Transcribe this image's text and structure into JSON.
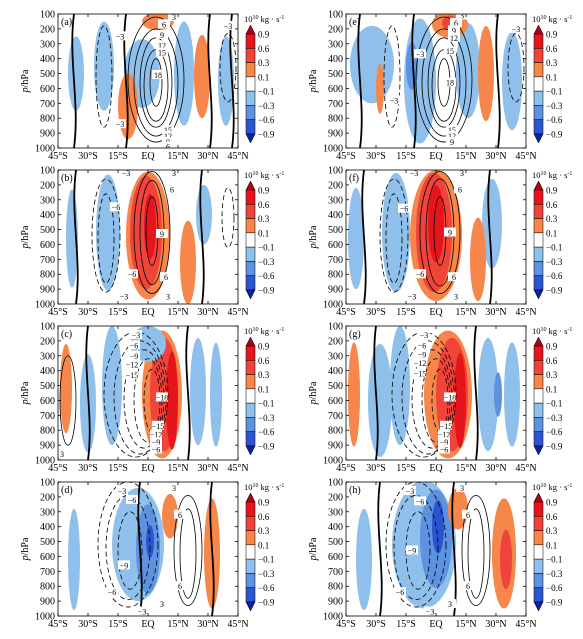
{
  "figure": {
    "x_tick_labels": [
      "45°S",
      "30°S",
      "15°S",
      "EQ",
      "15°N",
      "30°N",
      "45°N"
    ],
    "y_tick_labels": [
      "100",
      "200",
      "300",
      "400",
      "500",
      "600",
      "700",
      "800",
      "900",
      "1000"
    ],
    "y_label_prefix": "p",
    "y_label_suffix": "/hPa",
    "colorbar_unit_base": "10",
    "colorbar_unit_exp": "10",
    "colorbar_unit_rest": "kg · s",
    "colorbar_unit_rest_exp": "-1",
    "colorbar_ticks": [
      "0.9",
      "0.6",
      "0.3",
      "0.1",
      "−0.1",
      "−0.3",
      "−0.6",
      "−0.9"
    ],
    "colors": {
      "pos3": "#e6151c",
      "pos2": "#f0443a",
      "pos1": "#f6864a",
      "neg1": "#8fc0ec",
      "neg2": "#5c92e0",
      "neg3": "#2a55cf",
      "tri_top": "#b00018",
      "tri_bottom": "#0c20a8"
    }
  },
  "chart_data": [
    {
      "type": "heatmap",
      "panel_label": "(a)",
      "contour_labels": [
        "3",
        "6",
        "9",
        "12",
        "15",
        "18",
        "15",
        "12",
        "9",
        "6",
        "−3",
        "−3",
        "−3"
      ],
      "shaded_positive_max": 0.3,
      "shaded_negative_min": -0.3
    },
    {
      "type": "heatmap",
      "panel_label": "(b)",
      "contour_labels": [
        "3",
        "6",
        "−3",
        "−6",
        "9",
        "6",
        "3",
        "−6",
        "−3"
      ],
      "shaded_positive_max": 0.9,
      "shaded_negative_min": -0.3
    },
    {
      "type": "heatmap",
      "panel_label": "(c)",
      "contour_labels": [
        "−3",
        "−6",
        "−9",
        "−12",
        "−15",
        "−18",
        "−15",
        "−12",
        "−9",
        "−6",
        "3"
      ],
      "shaded_positive_max": 0.9,
      "shaded_negative_min": -0.3
    },
    {
      "type": "heatmap",
      "panel_label": "(d)",
      "contour_labels": [
        "−3",
        "−6",
        "3",
        "6",
        "−9",
        "6",
        "−6",
        "3",
        "−3"
      ],
      "shaded_positive_max": 0.3,
      "shaded_negative_min": -0.6
    },
    {
      "type": "heatmap",
      "panel_label": "(e)",
      "contour_labels": [
        "3",
        "6",
        "9",
        "12",
        "15",
        "18",
        "15",
        "12",
        "9",
        "−3",
        "−3",
        "−3"
      ],
      "shaded_positive_max": 0.9,
      "shaded_negative_min": -0.6
    },
    {
      "type": "heatmap",
      "panel_label": "(f)",
      "contour_labels": [
        "3",
        "6",
        "−3",
        "−6",
        "9",
        "6",
        "3",
        "−6",
        "−3"
      ],
      "shaded_positive_max": 0.9,
      "shaded_negative_min": -0.3
    },
    {
      "type": "heatmap",
      "panel_label": "(g)",
      "contour_labels": [
        "−3",
        "−6",
        "−9",
        "−12",
        "−15",
        "−18",
        "−15",
        "−12",
        "−9",
        "−6"
      ],
      "shaded_positive_max": 0.9,
      "shaded_negative_min": -0.6
    },
    {
      "type": "heatmap",
      "panel_label": "(h)",
      "contour_labels": [
        "−3",
        "−6",
        "3",
        "6",
        "−9",
        "6",
        "−6",
        "3",
        "−3"
      ],
      "shaded_positive_max": 0.9,
      "shaded_negative_min": -0.9
    }
  ]
}
